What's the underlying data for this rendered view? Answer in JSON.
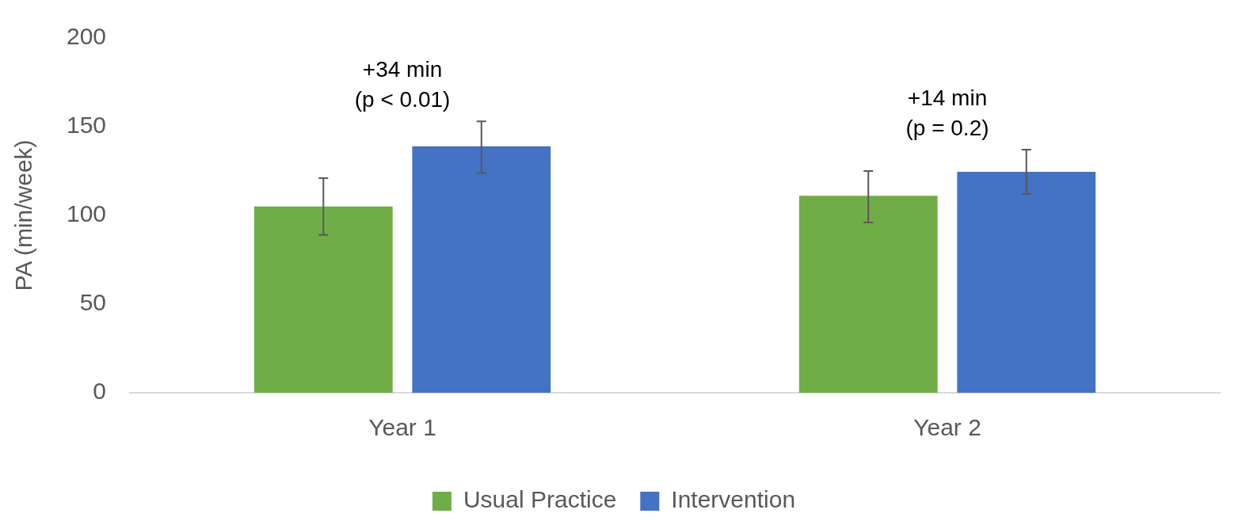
{
  "chart_data": {
    "type": "bar",
    "ylabel": "PA (min/week)",
    "categories": [
      "Year 1",
      "Year 2"
    ],
    "series": [
      {
        "name": "Usual Practice",
        "color": "#70ad47",
        "values": [
          105,
          111
        ],
        "errors": [
          [
            89,
            121
          ],
          [
            96,
            125
          ]
        ]
      },
      {
        "name": "Intervention",
        "color": "#4472c4",
        "values": [
          139,
          124.5
        ],
        "errors": [
          [
            124,
            153
          ],
          [
            112,
            137
          ]
        ]
      }
    ],
    "ylim": [
      0,
      200
    ],
    "yticks": [
      0,
      50,
      100,
      150,
      200
    ],
    "grid": false,
    "legend": "bottom",
    "annotations": [
      "+34 min\n(p < 0.01)",
      "+14 min\n(p = 0.2)"
    ]
  }
}
